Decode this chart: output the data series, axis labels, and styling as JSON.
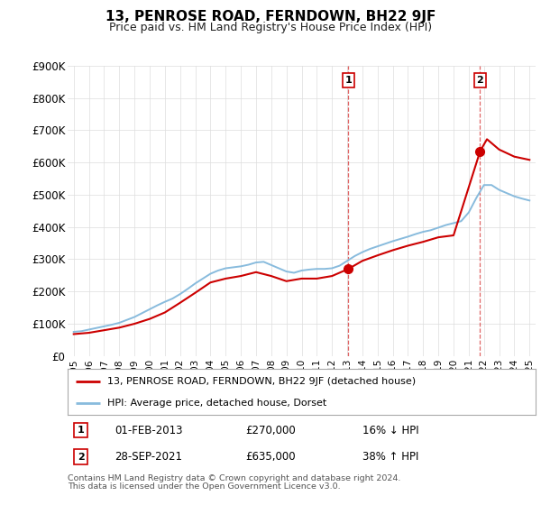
{
  "title": "13, PENROSE ROAD, FERNDOWN, BH22 9JF",
  "subtitle": "Price paid vs. HM Land Registry's House Price Index (HPI)",
  "legend_label_red": "13, PENROSE ROAD, FERNDOWN, BH22 9JF (detached house)",
  "legend_label_blue": "HPI: Average price, detached house, Dorset",
  "transaction1_date": "01-FEB-2013",
  "transaction1_price": "£270,000",
  "transaction1_pct": "16% ↓ HPI",
  "transaction2_date": "28-SEP-2021",
  "transaction2_price": "£635,000",
  "transaction2_pct": "38% ↑ HPI",
  "footnote1": "Contains HM Land Registry data © Crown copyright and database right 2024.",
  "footnote2": "This data is licensed under the Open Government Licence v3.0.",
  "ylim": [
    0,
    900000
  ],
  "yticks": [
    0,
    100000,
    200000,
    300000,
    400000,
    500000,
    600000,
    700000,
    800000,
    900000
  ],
  "ytick_labels": [
    "£0",
    "£100K",
    "£200K",
    "£300K",
    "£400K",
    "£500K",
    "£600K",
    "£700K",
    "£800K",
    "£900K"
  ],
  "xlim_start": 1994.6,
  "xlim_end": 2025.4,
  "red_color": "#cc0000",
  "blue_color": "#88bbdd",
  "marker1_year": 2013.08,
  "marker2_year": 2021.75,
  "hpi_years": [
    1995,
    1995.5,
    1996,
    1996.5,
    1997,
    1997.5,
    1998,
    1998.5,
    1999,
    1999.5,
    2000,
    2000.5,
    2001,
    2001.5,
    2002,
    2002.5,
    2003,
    2003.5,
    2004,
    2004.5,
    2005,
    2005.5,
    2006,
    2006.5,
    2007,
    2007.5,
    2008,
    2008.5,
    2009,
    2009.5,
    2010,
    2010.5,
    2011,
    2011.5,
    2012,
    2012.5,
    2013,
    2013.5,
    2014,
    2014.5,
    2015,
    2015.5,
    2016,
    2016.5,
    2017,
    2017.5,
    2018,
    2018.5,
    2019,
    2019.5,
    2020,
    2020.5,
    2021,
    2021.5,
    2022,
    2022.5,
    2023,
    2023.5,
    2024,
    2024.5,
    2025
  ],
  "hpi_values": [
    75000,
    77000,
    82000,
    87000,
    92000,
    97000,
    103000,
    112000,
    121000,
    133000,
    145000,
    157000,
    168000,
    178000,
    192000,
    208000,
    225000,
    240000,
    255000,
    265000,
    272000,
    275000,
    278000,
    283000,
    290000,
    292000,
    282000,
    272000,
    262000,
    258000,
    265000,
    268000,
    270000,
    270000,
    272000,
    280000,
    295000,
    310000,
    322000,
    332000,
    340000,
    348000,
    356000,
    363000,
    370000,
    378000,
    385000,
    390000,
    398000,
    406000,
    412000,
    418000,
    445000,
    490000,
    530000,
    530000,
    515000,
    505000,
    495000,
    488000,
    482000
  ],
  "red_years": [
    1995,
    1996,
    1997,
    1998,
    1999,
    2000,
    2001,
    2002,
    2003,
    2004,
    2005,
    2006,
    2007,
    2008,
    2009,
    2010,
    2011,
    2012,
    2013.08,
    2014,
    2015,
    2016,
    2017,
    2018,
    2019,
    2020,
    2021.75,
    2022.2,
    2023,
    2024,
    2025
  ],
  "red_values": [
    68000,
    72000,
    80000,
    88000,
    100000,
    115000,
    135000,
    165000,
    196000,
    228000,
    240000,
    248000,
    260000,
    248000,
    232000,
    240000,
    240000,
    248000,
    270000,
    295000,
    312000,
    328000,
    342000,
    354000,
    368000,
    374000,
    635000,
    672000,
    640000,
    618000,
    608000
  ],
  "background_color": "#ffffff",
  "grid_color": "#dddddd"
}
